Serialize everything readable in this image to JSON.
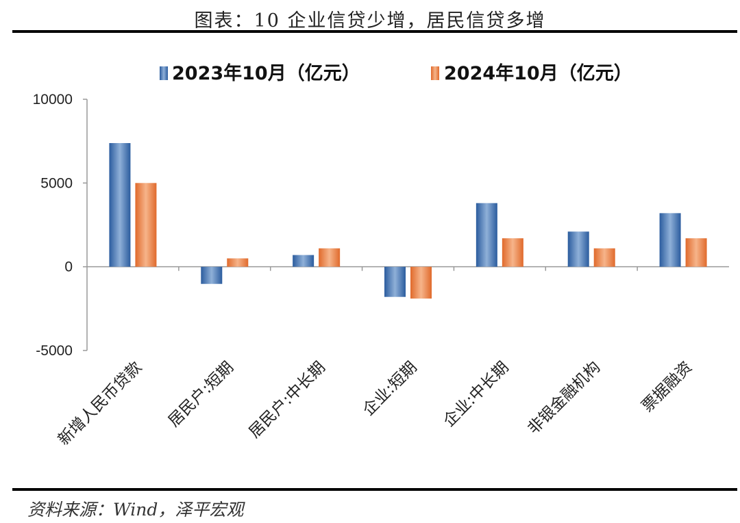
{
  "header": {
    "title": "图表：10 企业信贷少增，居民信贷多增"
  },
  "footer": {
    "source": "资料来源：Wind，泽平宏观"
  },
  "colors": {
    "series_2023": "#3a6fb0",
    "series_2024": "#e8763a",
    "axis": "#999999"
  },
  "chart_data": {
    "type": "bar",
    "title": "图表：10 企业信贷少增，居民信贷多增",
    "xlabel": "",
    "ylabel": "",
    "ylim": [
      -5000,
      10000
    ],
    "yticks": [
      10000,
      5000,
      0,
      -5000
    ],
    "grid": false,
    "legend_position": "top",
    "categories": [
      "新增人民币贷款",
      "居民户:短期",
      "居民户:中长期",
      "企业:短期",
      "企业:中长期",
      "非银金融机构",
      "票据融资"
    ],
    "series": [
      {
        "name": "2023年10月（亿元）",
        "values": [
          7384,
          -1024,
          700,
          -1800,
          3800,
          2100,
          3200
        ]
      },
      {
        "name": "2024年10月（亿元）",
        "values": [
          5000,
          500,
          1100,
          -1900,
          1700,
          1100,
          1700
        ]
      }
    ]
  }
}
